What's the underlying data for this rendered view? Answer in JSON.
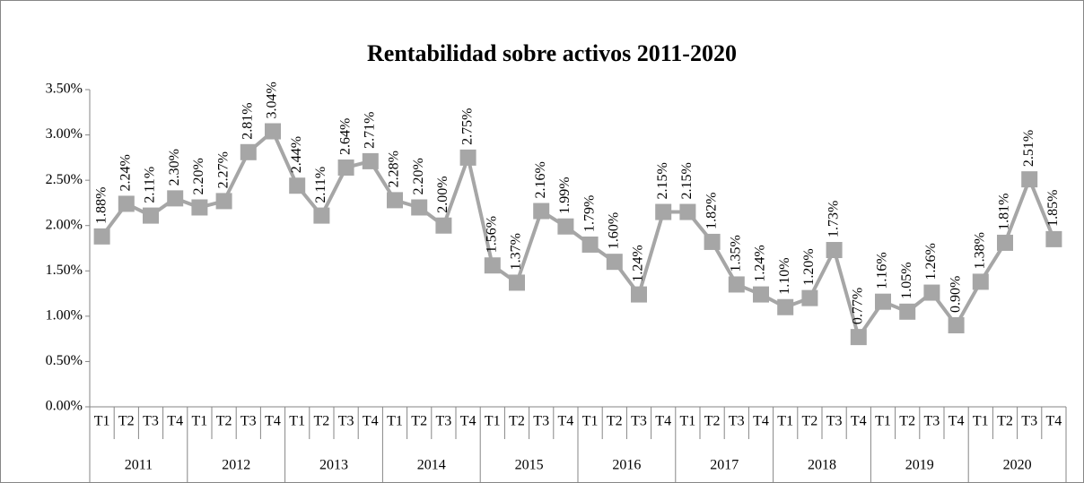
{
  "chart_data": {
    "type": "line",
    "title": "Rentabilidad sobre activos 2011-2020",
    "categories": [
      "T1",
      "T2",
      "T3",
      "T4",
      "T1",
      "T2",
      "T3",
      "T4",
      "T1",
      "T2",
      "T3",
      "T4",
      "T1",
      "T2",
      "T3",
      "T4",
      "T1",
      "T2",
      "T3",
      "T4",
      "T1",
      "T2",
      "T3",
      "T4",
      "T1",
      "T2",
      "T3",
      "T4",
      "T1",
      "T2",
      "T3",
      "T4",
      "T1",
      "T2",
      "T3",
      "T4",
      "T1",
      "T2",
      "T3",
      "T4"
    ],
    "groups": [
      "2011",
      "2012",
      "2013",
      "2014",
      "2015",
      "2016",
      "2017",
      "2018",
      "2019",
      "2020"
    ],
    "values": [
      1.88,
      2.24,
      2.11,
      2.3,
      2.2,
      2.27,
      2.81,
      3.04,
      2.44,
      2.11,
      2.64,
      2.71,
      2.28,
      2.2,
      2.0,
      2.75,
      1.56,
      1.37,
      2.16,
      1.99,
      1.79,
      1.6,
      1.24,
      2.15,
      2.15,
      1.82,
      1.35,
      1.24,
      1.1,
      1.2,
      1.73,
      0.77,
      1.16,
      1.05,
      1.26,
      0.9,
      1.38,
      1.81,
      2.51,
      1.85
    ],
    "value_labels": [
      "1.88%",
      "2.24%",
      "2.11%",
      "2.30%",
      "2.20%",
      "2.27%",
      "2.81%",
      "3.04%",
      "2.44%",
      "2.11%",
      "2.64%",
      "2.71%",
      "2.28%",
      "2.20%",
      "2.00%",
      "2.75%",
      "1.56%",
      "1.37%",
      "2.16%",
      "1.99%",
      "1.79%",
      "1.60%",
      "1.24%",
      "2.15%",
      "2.15%",
      "1.82%",
      "1.35%",
      "1.24%",
      "1.10%",
      "1.20%",
      "1.73%",
      "0.77%",
      "1.16%",
      "1.05%",
      "1.26%",
      "0.90%",
      "1.38%",
      "1.81%",
      "2.51%",
      "1.85%"
    ],
    "color": "#a6a6a6",
    "ylim": [
      0,
      3.5
    ],
    "yticks": [
      {
        "value": 0,
        "label": "0.00%"
      },
      {
        "value": 0.5,
        "label": "0.50%"
      },
      {
        "value": 1,
        "label": "1.00%"
      },
      {
        "value": 1.5,
        "label": "1.50%"
      },
      {
        "value": 2,
        "label": "2.00%"
      },
      {
        "value": 2.5,
        "label": "2.50%"
      },
      {
        "value": 3,
        "label": "3.00%"
      },
      {
        "value": 3.5,
        "label": "3.50%"
      }
    ],
    "grid": false
  }
}
